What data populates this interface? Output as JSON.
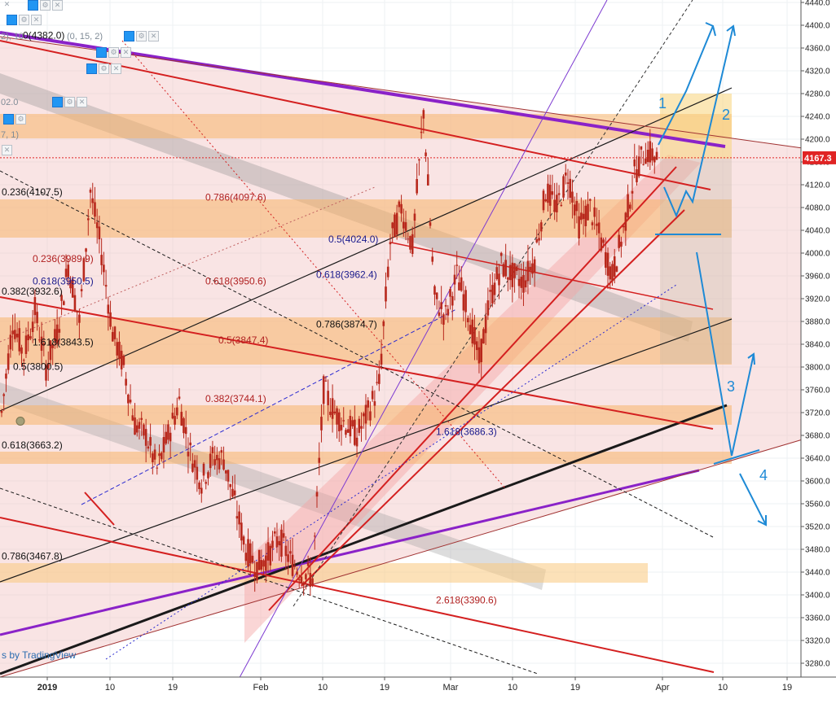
{
  "chart_data": {
    "type": "candlestick",
    "title": "",
    "watermark": "s by TradingView",
    "y_axis": {
      "min": 3250,
      "max": 4450,
      "step": 40,
      "tick_labels": [
        "4440.0",
        "4400.0",
        "4360.0",
        "4320.0",
        "4280.0",
        "4240.0",
        "4200.0",
        "4160.0",
        "4120.0",
        "4080.0",
        "4040.0",
        "4000.0",
        "3960.0",
        "3920.0",
        "3880.0",
        "3840.0",
        "3800.0",
        "3760.0",
        "3720.0",
        "3680.0",
        "3640.0",
        "3600.0",
        "3560.0",
        "3520.0",
        "3480.0",
        "3440.0",
        "3400.0",
        "3360.0",
        "3320.0",
        "3280.0"
      ]
    },
    "x_axis": {
      "tick_labels": [
        "2019",
        "10",
        "19",
        "Feb",
        "10",
        "19",
        "Mar",
        "10",
        "19",
        "Apr",
        "10",
        "19"
      ]
    },
    "last_price": {
      "label": "4167.3",
      "value": 4167.3
    },
    "fib_labels": [
      {
        "text": "0(4382.0)",
        "value": 4382.0
      },
      {
        "text": "0.236(4107.5)",
        "value": 4107.5
      },
      {
        "text": "0.786(4097.6)",
        "value": 4097.6
      },
      {
        "text": "0.5(4024.0)",
        "value": 4024.0
      },
      {
        "text": "0.236(3989.9)",
        "value": 3989.9
      },
      {
        "text": "0.618(3962.4)",
        "value": 3962.4
      },
      {
        "text": "0.618(3950.6)",
        "value": 3950.6
      },
      {
        "text": "0.618(3950.5)",
        "value": 3950.5
      },
      {
        "text": "0.382(3932.6)",
        "value": 3932.6
      },
      {
        "text": "0.786(3874.7)",
        "value": 3874.7
      },
      {
        "text": "0.5(3847.4)",
        "value": 3847.4
      },
      {
        "text": "1.618(3843.5)",
        "value": 3843.5
      },
      {
        "text": "0.5(3800.5)",
        "value": 3800.5
      },
      {
        "text": "0.382(3744.1)",
        "value": 3744.1
      },
      {
        "text": "1.618(3686.3)",
        "value": 3686.3
      },
      {
        "text": "0.618(3663.2)",
        "value": 3663.2
      },
      {
        "text": "0.786(3467.8)",
        "value": 3467.8
      },
      {
        "text": "2.618(3390.6)",
        "value": 3390.6
      }
    ],
    "wave_labels": [
      "1",
      "2",
      "3",
      "4"
    ],
    "indicator_fragments": [
      "2), 10",
      "(0, 15, 2)",
      "02.0",
      "7, 1)"
    ],
    "series": [
      {
        "values_close_approx": [
          3720,
          3880,
          3820,
          3900,
          3800,
          3860,
          3980,
          3880,
          4110,
          4000,
          3860,
          3800,
          3700,
          3680,
          3620,
          3680,
          3740,
          3650,
          3600,
          3640,
          3640,
          3560,
          3480,
          3450,
          3470,
          3500,
          3460,
          3440,
          3430,
          3760,
          3720,
          3700,
          3680,
          3720,
          3770,
          4020,
          4080,
          4010,
          4250,
          3920,
          3890,
          3960,
          3900,
          3810,
          3920,
          3980,
          3960,
          3950,
          3990,
          4110,
          4080,
          4140,
          4050,
          4080,
          4020,
          3960,
          4040,
          4140,
          4180,
          4167
        ]
      }
    ],
    "colors": {
      "candle": "#b8281c",
      "fib_red": "#d42020",
      "channel_black": "#1a1a1a",
      "trend_purple": "#8a22c8",
      "wave_blue": "#1e8ad6",
      "zone_orange": "#f7b46a",
      "zone_pink": "#f2c4c4",
      "price_tag": "#e02424"
    },
    "grid": true
  },
  "legend_icons": [
    "eye-icon",
    "gear-icon",
    "close-icon"
  ]
}
